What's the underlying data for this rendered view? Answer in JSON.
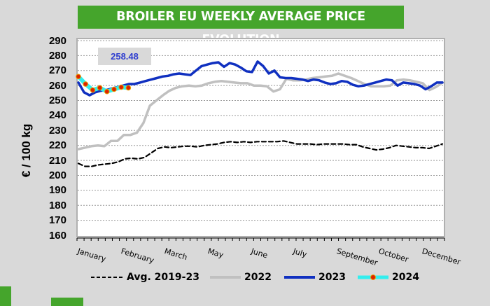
{
  "header": {
    "title": "BROILER EU WEEKLY AVERAGE PRICE EVOLUTION"
  },
  "colors": {
    "title_bg": "#45a52c",
    "avg": "#000000",
    "s2022": "#c0c0c0",
    "s2023": "#1030c0",
    "s2024_line": "#33eeee",
    "s2024_marker": "#dd2200",
    "value_text": "#2f3ecf"
  },
  "chart_data": {
    "type": "line",
    "title": "BROILER EU WEEKLY AVERAGE PRICE EVOLUTION",
    "xlabel": "",
    "ylabel": "€ / 100 kg",
    "ylim": [
      160,
      290
    ],
    "yticks": [
      160,
      170,
      180,
      190,
      200,
      210,
      220,
      230,
      240,
      250,
      260,
      270,
      280,
      290
    ],
    "grid": true,
    "x_weeks": 52,
    "month_labels": [
      {
        "label": "January",
        "week": 1
      },
      {
        "label": "February",
        "week": 7
      },
      {
        "label": "March",
        "week": 13
      },
      {
        "label": "May",
        "week": 19
      },
      {
        "label": "June",
        "week": 25
      },
      {
        "label": "July",
        "week": 31
      },
      {
        "label": "September",
        "week": 37
      },
      {
        "label": "October",
        "week": 43
      },
      {
        "label": "December",
        "week": 49
      }
    ],
    "annotation": "258.48",
    "legend_position": "bottom",
    "series": [
      {
        "name": "Avg. 2019-23",
        "style": "dashed",
        "values": [
          208,
          206,
          206,
          207,
          207.5,
          208,
          209,
          211,
          211.5,
          211,
          212,
          215,
          218,
          219,
          218.5,
          219,
          219.5,
          219.5,
          219,
          220,
          220.5,
          221,
          222,
          222.5,
          222,
          222.5,
          222,
          222.5,
          222.5,
          222.5,
          222.5,
          223,
          222,
          221,
          221,
          221,
          220.5,
          221,
          221,
          221,
          221,
          220.5,
          220.5,
          219,
          218,
          217,
          217.5,
          218.5,
          220,
          219.5,
          219,
          218.5,
          218.5,
          218,
          219.5,
          221
        ]
      },
      {
        "name": "2022",
        "style": "solid",
        "values": [
          217.5,
          218.5,
          219.5,
          220,
          219.5,
          223,
          223,
          227,
          227,
          228.5,
          235,
          246.5,
          250,
          253.5,
          256.5,
          258.5,
          259.5,
          260,
          259.5,
          260,
          261.5,
          262.5,
          263,
          262.5,
          262,
          261.5,
          261.5,
          260,
          260,
          259.5,
          256,
          257.5,
          264.5,
          263.5,
          263.5,
          264,
          265,
          265.5,
          266,
          266.5,
          268,
          266.5,
          265,
          263,
          261,
          259.5,
          259.5,
          259.5,
          260,
          263.5,
          264,
          263.5,
          262.5,
          261.5,
          257,
          259,
          262
        ]
      },
      {
        "name": "2023",
        "style": "solid",
        "values": [
          262,
          255.5,
          253.5,
          255.5,
          256.5,
          257,
          258,
          259,
          260,
          261,
          261,
          262,
          263,
          264,
          265,
          266,
          266.5,
          267.5,
          268,
          267.5,
          267,
          270,
          273,
          274,
          275,
          275.5,
          272.5,
          275,
          274,
          272,
          269.5,
          269,
          276,
          273,
          268,
          270,
          265.5,
          265,
          265,
          264.5,
          264,
          263,
          264,
          263.5,
          262,
          261,
          261.5,
          263,
          262.5,
          260.5,
          259.5,
          260,
          261,
          262,
          263,
          264,
          263.5,
          260,
          262,
          261.5,
          261,
          260,
          257.5,
          259.5,
          262,
          262
        ]
      },
      {
        "name": "2024",
        "style": "solid-markers",
        "values": [
          266,
          261,
          257,
          258.5,
          256,
          257.5,
          258.9,
          258.48
        ]
      }
    ]
  },
  "legend": {
    "items": [
      {
        "label": "Avg. 2019-23"
      },
      {
        "label": "2022"
      },
      {
        "label": "2023"
      },
      {
        "label": "2024"
      }
    ]
  }
}
